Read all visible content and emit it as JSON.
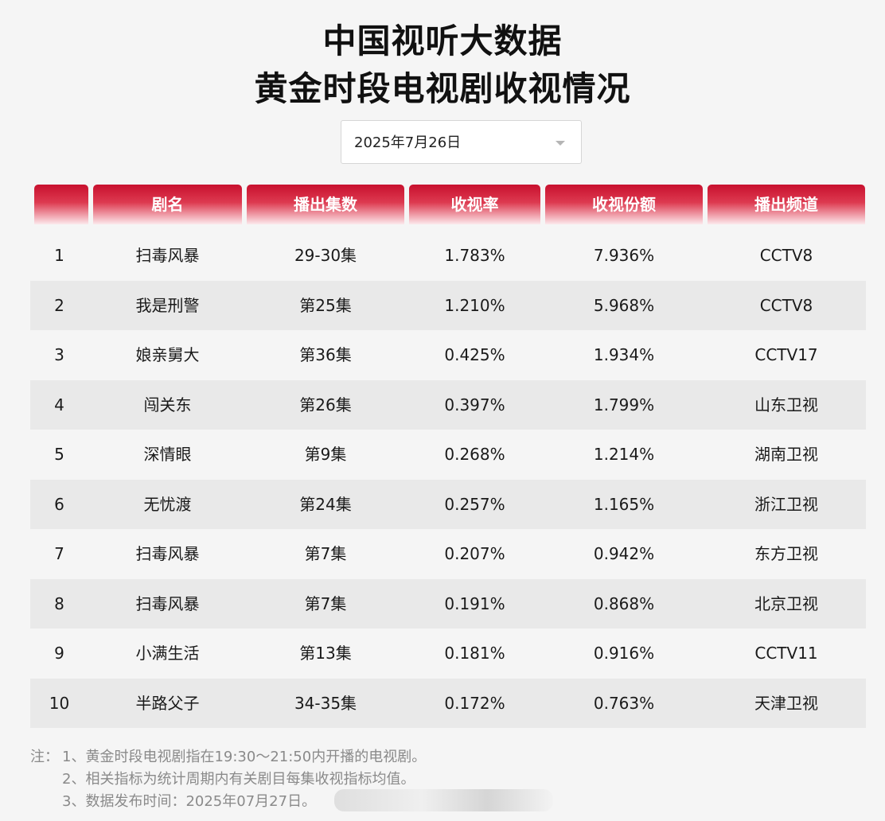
{
  "title_line1": "中国视听大数据",
  "title_line2": "黄金时段电视剧收视情况",
  "date_select": {
    "value": "2025年7月26日",
    "icon": "chevron-down-icon"
  },
  "table": {
    "headers": [
      "",
      "剧名",
      "播出集数",
      "收视率",
      "收视份额",
      "播出频道"
    ],
    "rows": [
      [
        "1",
        "扫毒风暴",
        "29-30集",
        "1.783%",
        "7.936%",
        "CCTV8"
      ],
      [
        "2",
        "我是刑警",
        "第25集",
        "1.210%",
        "5.968%",
        "CCTV8"
      ],
      [
        "3",
        "娘亲舅大",
        "第36集",
        "0.425%",
        "1.934%",
        "CCTV17"
      ],
      [
        "4",
        "闯关东",
        "第26集",
        "0.397%",
        "1.799%",
        "山东卫视"
      ],
      [
        "5",
        "深情眼",
        "第9集",
        "0.268%",
        "1.214%",
        "湖南卫视"
      ],
      [
        "6",
        "无忧渡",
        "第24集",
        "0.257%",
        "1.165%",
        "浙江卫视"
      ],
      [
        "7",
        "扫毒风暴",
        "第7集",
        "0.207%",
        "0.942%",
        "东方卫视"
      ],
      [
        "8",
        "扫毒风暴",
        "第7集",
        "0.191%",
        "0.868%",
        "北京卫视"
      ],
      [
        "9",
        "小满生活",
        "第13集",
        "0.181%",
        "0.916%",
        "CCTV11"
      ],
      [
        "10",
        "半路父子",
        "34-35集",
        "0.172%",
        "0.763%",
        "天津卫视"
      ]
    ]
  },
  "notes": {
    "prefix": "注：",
    "lines": [
      "1、黄金时段电视剧指在19:30～21:50内开播的电视剧。",
      "2、相关指标为统计周期内有关剧目每集收视指标均值。",
      "3、数据发布时间：2025年07月27日。"
    ]
  },
  "colors": {
    "header_red": "#c8102e",
    "row_shade": "#e9e9e9",
    "page_bg": "#f5f5f5"
  }
}
